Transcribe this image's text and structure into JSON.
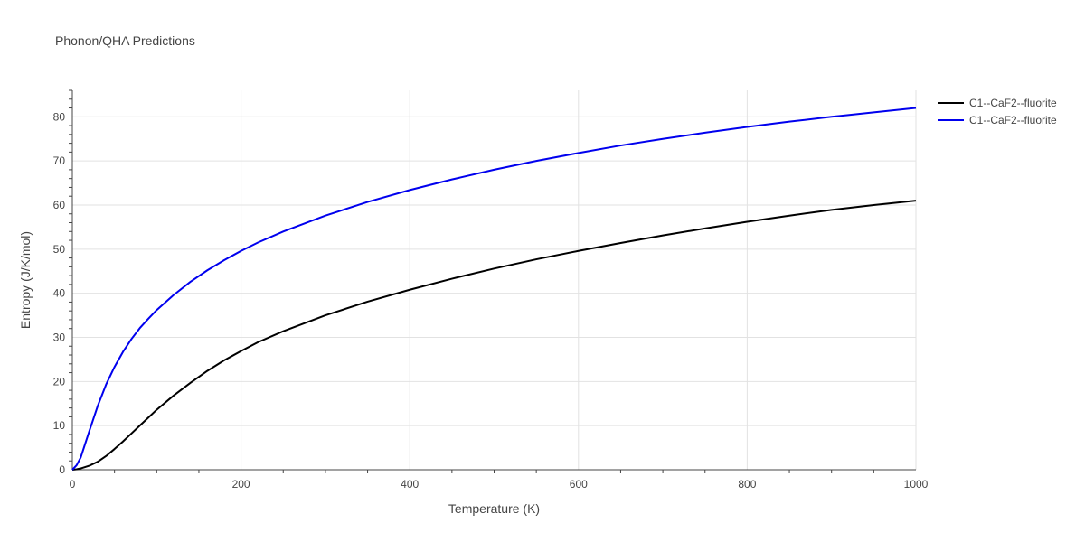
{
  "chart_data": {
    "type": "line",
    "title": "Phonon/QHA Predictions",
    "xlabel": "Temperature (K)",
    "ylabel": "Entropy (J/K/mol)",
    "xlim": [
      0,
      1000
    ],
    "ylim": [
      0,
      86
    ],
    "xticks": [
      0,
      200,
      400,
      600,
      800,
      1000
    ],
    "yticks": [
      0,
      10,
      20,
      30,
      40,
      50,
      60,
      70,
      80
    ],
    "grid": true,
    "legend_position": "top-right",
    "series": [
      {
        "name": "C1--CaF2--fluorite",
        "color": "#000000",
        "x": [
          0,
          5,
          10,
          20,
          30,
          40,
          50,
          60,
          70,
          80,
          90,
          100,
          120,
          140,
          160,
          180,
          200,
          220,
          250,
          300,
          350,
          400,
          450,
          500,
          550,
          600,
          650,
          700,
          750,
          800,
          850,
          900,
          950,
          1000
        ],
        "y": [
          0,
          0.1,
          0.3,
          0.9,
          1.8,
          3.1,
          4.7,
          6.4,
          8.2,
          10.0,
          11.8,
          13.6,
          16.8,
          19.7,
          22.4,
          24.8,
          26.9,
          28.9,
          31.4,
          35.0,
          38.1,
          40.8,
          43.3,
          45.6,
          47.7,
          49.6,
          51.4,
          53.1,
          54.7,
          56.2,
          57.6,
          58.9,
          60.0,
          61.0
        ]
      },
      {
        "name": "C1--CaF2--fluorite",
        "color": "#0000ee",
        "x": [
          0,
          5,
          10,
          20,
          30,
          40,
          50,
          60,
          70,
          80,
          90,
          100,
          120,
          140,
          160,
          180,
          200,
          220,
          250,
          300,
          350,
          400,
          450,
          500,
          550,
          600,
          650,
          700,
          750,
          800,
          850,
          900,
          950,
          1000
        ],
        "y": [
          0,
          1.0,
          2.8,
          8.7,
          14.4,
          19.3,
          23.3,
          26.7,
          29.6,
          32.1,
          34.2,
          36.2,
          39.6,
          42.6,
          45.2,
          47.5,
          49.6,
          51.5,
          54.0,
          57.6,
          60.7,
          63.4,
          65.8,
          68.0,
          70.0,
          71.8,
          73.5,
          75.0,
          76.4,
          77.7,
          78.9,
          80.0,
          81.0,
          82.0
        ]
      }
    ]
  }
}
